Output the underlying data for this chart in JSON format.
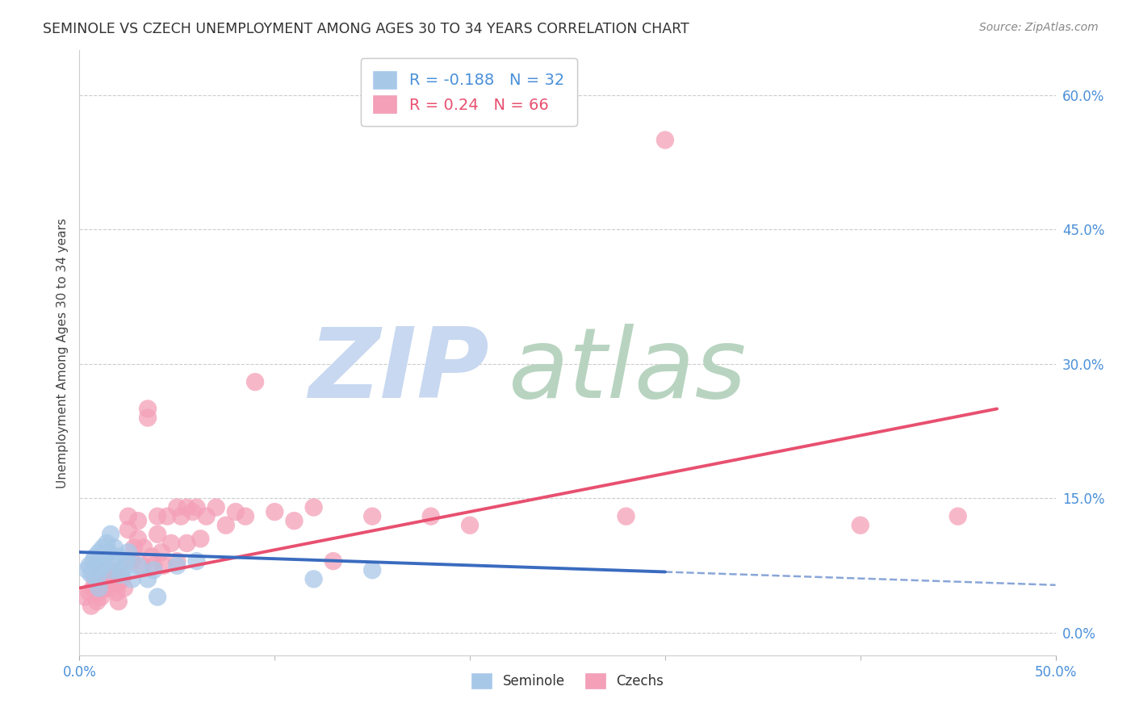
{
  "title": "SEMINOLE VS CZECH UNEMPLOYMENT AMONG AGES 30 TO 34 YEARS CORRELATION CHART",
  "source": "Source: ZipAtlas.com",
  "ylabel": "Unemployment Among Ages 30 to 34 years",
  "xlim": [
    0.0,
    0.5
  ],
  "ylim": [
    -0.025,
    0.65
  ],
  "seminole_R": -0.188,
  "seminole_N": 32,
  "czech_R": 0.24,
  "czech_N": 66,
  "seminole_color": "#a8c8e8",
  "czech_color": "#f4a0b8",
  "seminole_line_color": "#3a6bbf",
  "czech_line_color": "#e85070",
  "zip_watermark_color": "#c8d8f0",
  "atlas_watermark_color": "#b8d4c0",
  "background_color": "#ffffff",
  "grid_color": "#cccccc",
  "axis_label_color": "#4a90d9",
  "title_color": "#333333",
  "source_color": "#888888",
  "legend_text_seminole_color": "#4a90d9",
  "legend_text_czech_color": "#e85070",
  "seminole_x": [
    0.004,
    0.005,
    0.006,
    0.007,
    0.008,
    0.009,
    0.01,
    0.01,
    0.01,
    0.012,
    0.012,
    0.013,
    0.014,
    0.015,
    0.015,
    0.016,
    0.017,
    0.018,
    0.02,
    0.021,
    0.022,
    0.024,
    0.025,
    0.027,
    0.03,
    0.035,
    0.038,
    0.04,
    0.05,
    0.06,
    0.12,
    0.15
  ],
  "seminole_y": [
    0.07,
    0.075,
    0.065,
    0.08,
    0.085,
    0.06,
    0.09,
    0.07,
    0.05,
    0.095,
    0.075,
    0.085,
    0.1,
    0.09,
    0.07,
    0.11,
    0.08,
    0.095,
    0.085,
    0.065,
    0.07,
    0.08,
    0.09,
    0.06,
    0.075,
    0.06,
    0.07,
    0.04,
    0.075,
    0.08,
    0.06,
    0.07
  ],
  "czech_x": [
    0.003,
    0.005,
    0.006,
    0.007,
    0.008,
    0.009,
    0.01,
    0.01,
    0.011,
    0.012,
    0.013,
    0.014,
    0.015,
    0.015,
    0.016,
    0.017,
    0.018,
    0.019,
    0.02,
    0.02,
    0.021,
    0.022,
    0.023,
    0.025,
    0.025,
    0.027,
    0.028,
    0.03,
    0.03,
    0.032,
    0.033,
    0.035,
    0.035,
    0.037,
    0.038,
    0.04,
    0.04,
    0.042,
    0.043,
    0.045,
    0.047,
    0.05,
    0.05,
    0.052,
    0.055,
    0.055,
    0.058,
    0.06,
    0.062,
    0.065,
    0.07,
    0.075,
    0.08,
    0.085,
    0.09,
    0.1,
    0.11,
    0.12,
    0.13,
    0.15,
    0.18,
    0.2,
    0.28,
    0.3,
    0.4,
    0.45
  ],
  "czech_y": [
    0.04,
    0.045,
    0.03,
    0.05,
    0.06,
    0.035,
    0.045,
    0.065,
    0.04,
    0.055,
    0.05,
    0.06,
    0.07,
    0.05,
    0.06,
    0.055,
    0.065,
    0.045,
    0.055,
    0.035,
    0.07,
    0.06,
    0.05,
    0.13,
    0.115,
    0.08,
    0.095,
    0.125,
    0.105,
    0.075,
    0.095,
    0.25,
    0.24,
    0.085,
    0.075,
    0.13,
    0.11,
    0.09,
    0.075,
    0.13,
    0.1,
    0.14,
    0.08,
    0.13,
    0.14,
    0.1,
    0.135,
    0.14,
    0.105,
    0.13,
    0.14,
    0.12,
    0.135,
    0.13,
    0.28,
    0.135,
    0.125,
    0.14,
    0.08,
    0.13,
    0.13,
    0.12,
    0.13,
    0.55,
    0.12,
    0.13
  ],
  "seminole_line_x0": 0.0,
  "seminole_line_y0": 0.09,
  "seminole_line_x1": 0.3,
  "seminole_line_y1": 0.068,
  "czech_line_x0": 0.0,
  "czech_line_y0": 0.05,
  "czech_line_x1": 0.47,
  "czech_line_y1": 0.25
}
